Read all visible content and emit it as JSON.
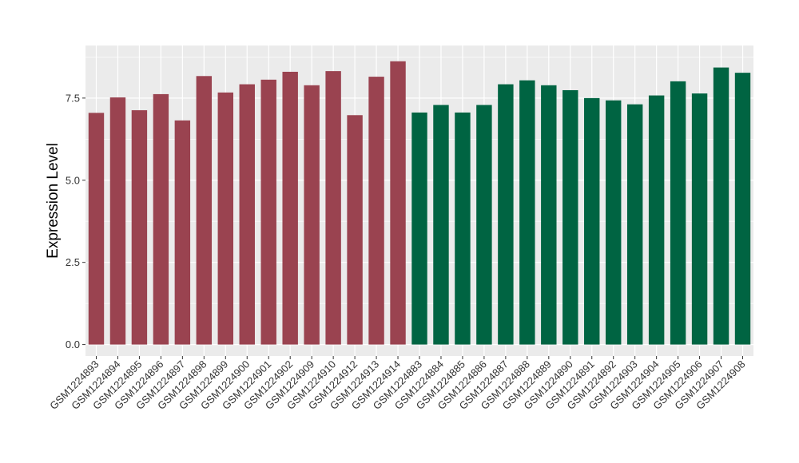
{
  "chart_data": {
    "type": "bar",
    "title": "",
    "xlabel": "",
    "ylabel": "Expression Level",
    "ylim": [
      -0.35,
      9.1
    ],
    "yticks": [
      0.0,
      2.5,
      5.0,
      7.5
    ],
    "ytick_labels": [
      "0.0",
      "2.5",
      "5.0",
      "7.5"
    ],
    "grid": true,
    "legend": "none",
    "categories": [
      "GSM1224893",
      "GSM1224894",
      "GSM1224895",
      "GSM1224896",
      "GSM1224897",
      "GSM1224898",
      "GSM1224899",
      "GSM1224900",
      "GSM1224901",
      "GSM1224902",
      "GSM1224909",
      "GSM1224910",
      "GSM1224912",
      "GSM1224913",
      "GSM1224914",
      "GSM1224883",
      "GSM1224884",
      "GSM1224885",
      "GSM1224886",
      "GSM1224887",
      "GSM1224888",
      "GSM1224889",
      "GSM1224890",
      "GSM1224891",
      "GSM1224892",
      "GSM1224903",
      "GSM1224904",
      "GSM1224905",
      "GSM1224906",
      "GSM1224907",
      "GSM1224908"
    ],
    "values": [
      7.05,
      7.52,
      7.13,
      7.62,
      6.82,
      8.17,
      7.67,
      7.92,
      8.06,
      8.3,
      7.89,
      8.32,
      6.98,
      8.15,
      8.62,
      7.06,
      7.29,
      7.06,
      7.29,
      7.92,
      8.04,
      7.89,
      7.74,
      7.5,
      7.43,
      7.31,
      7.58,
      8.01,
      7.64,
      8.43,
      8.27
    ],
    "colors": [
      "#9a4350",
      "#9a4350",
      "#9a4350",
      "#9a4350",
      "#9a4350",
      "#9a4350",
      "#9a4350",
      "#9a4350",
      "#9a4350",
      "#9a4350",
      "#9a4350",
      "#9a4350",
      "#9a4350",
      "#9a4350",
      "#9a4350",
      "#006442",
      "#006442",
      "#006442",
      "#006442",
      "#006442",
      "#006442",
      "#006442",
      "#006442",
      "#006442",
      "#006442",
      "#006442",
      "#006442",
      "#006442",
      "#006442",
      "#006442",
      "#006442"
    ],
    "panel_color": "#ebebeb",
    "grid_color": "#ffffff"
  }
}
